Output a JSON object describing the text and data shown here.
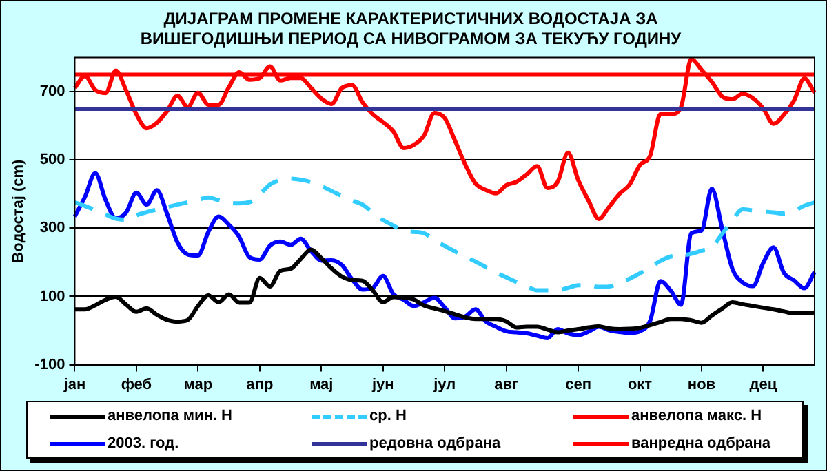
{
  "chart_data": {
    "type": "line",
    "title": "ДИЈАГРАМ ПРОМЕНЕ КАРАКТЕРИСТИЧНИХ ВОДОСТАЈА ЗА\nВИШЕГОДИШЊИ ПЕРИОД СА НИВОГРАМОМ ЗА ТЕКУЋУ ГОДИНУ",
    "ylabel": "Водостај (cm)",
    "categories": [
      "јан",
      null,
      null,
      null,
      null,
      null,
      "феб",
      null,
      null,
      null,
      null,
      null,
      "мар",
      null,
      null,
      null,
      null,
      null,
      "апр",
      null,
      null,
      null,
      null,
      null,
      "мај",
      null,
      null,
      null,
      null,
      null,
      "јун",
      null,
      null,
      null,
      null,
      null,
      "јул",
      null,
      null,
      null,
      null,
      null,
      "авг",
      null,
      null,
      null,
      null,
      null,
      null,
      "сеп",
      null,
      null,
      null,
      null,
      null,
      "окт",
      null,
      null,
      null,
      null,
      null,
      "нов",
      null,
      null,
      null,
      null,
      null,
      "дец",
      null,
      null,
      null,
      null,
      null
    ],
    "ylim": [
      -100,
      800
    ],
    "yticks": [
      -100,
      100,
      300,
      500,
      700
    ],
    "grid": "y",
    "legend": "bottom",
    "marker": "none",
    "series": [
      {
        "name": "анвелопа мин. Н",
        "color": "#000000",
        "line_style": "solid",
        "values": [
          62,
          62,
          74,
          90,
          99,
          76,
          55,
          65,
          46,
          31,
          26,
          31,
          72,
          103,
          83,
          106,
          82,
          82,
          154,
          129,
          175,
          181,
          210,
          237,
          212,
          182,
          158,
          148,
          146,
          118,
          83,
          98,
          97,
          91,
          73,
          65,
          57,
          48,
          39,
          34,
          34,
          34,
          27,
          9,
          11,
          11,
          3,
          -5,
          0,
          4,
          9,
          12,
          6,
          4,
          5,
          8,
          16,
          25,
          34,
          34,
          30,
          23,
          44,
          64,
          83,
          77,
          72,
          67,
          62,
          56,
          51,
          51,
          53
        ]
      },
      {
        "name": "ср. Н",
        "color": "#33ccff",
        "line_style": "dashed",
        "values": [
          376,
          365,
          353,
          340,
          328,
          325,
          338,
          347,
          355,
          362,
          369,
          376,
          383,
          390,
          382,
          375,
          373,
          376,
          399,
          428,
          441,
          445,
          442,
          435,
          423,
          409,
          394,
          381,
          369,
          346,
          324,
          308,
          292,
          289,
          285,
          266,
          248,
          232,
          217,
          202,
          186,
          170,
          156,
          142,
          129,
          118,
          118,
          118,
          125,
          133,
          133,
          128,
          129,
          140,
          152,
          168,
          185,
          204,
          217,
          220,
          225,
          234,
          244,
          283,
          323,
          355,
          352,
          349,
          346,
          343,
          351,
          366,
          375
        ]
      },
      {
        "name": "анвелопа макс. Н",
        "color": "#ff0000",
        "line_style": "solid",
        "values": [
          711,
          746,
          705,
          696,
          762,
          704,
          634,
          593,
          609,
          644,
          688,
          655,
          697,
          662,
          662,
          713,
          757,
          735,
          740,
          774,
          733,
          740,
          740,
          711,
          680,
          664,
          711,
          719,
          669,
          634,
          611,
          584,
          535,
          544,
          572,
          638,
          623,
          557,
          487,
          431,
          412,
          402,
          426,
          436,
          458,
          482,
          418,
          436,
          521,
          441,
          381,
          327,
          362,
          400,
          428,
          485,
          513,
          634,
          634,
          655,
          795,
          764,
          729,
          686,
          678,
          694,
          681,
          651,
          606,
          632,
          674,
          739,
          697
        ]
      },
      {
        "name": "2003. год.",
        "color": "#0000ff",
        "line_style": "solid",
        "values": [
          334,
          392,
          461,
          383,
          329,
          346,
          404,
          369,
          411,
          341,
          258,
          223,
          220,
          289,
          334,
          310,
          275,
          215,
          208,
          249,
          261,
          251,
          269,
          233,
          205,
          206,
          192,
          150,
          120,
          125,
          160,
          107,
          90,
          72,
          83,
          96,
          68,
          36,
          41,
          62,
          27,
          11,
          -2,
          -5,
          -8,
          -15,
          -22,
          4,
          -8,
          -13,
          -3,
          11,
          1,
          -4,
          -7,
          -2,
          29,
          145,
          117,
          76,
          285,
          293,
          416,
          299,
          181,
          141,
          130,
          198,
          244,
          170,
          147,
          124,
          172
        ]
      }
    ],
    "ref_lines": [
      {
        "axis": "y",
        "value": 650,
        "label": "редовна одбрана",
        "color": "#333399"
      },
      {
        "axis": "y",
        "value": 750,
        "label": "ванредна одбрана",
        "color": "#ff0000"
      }
    ]
  }
}
